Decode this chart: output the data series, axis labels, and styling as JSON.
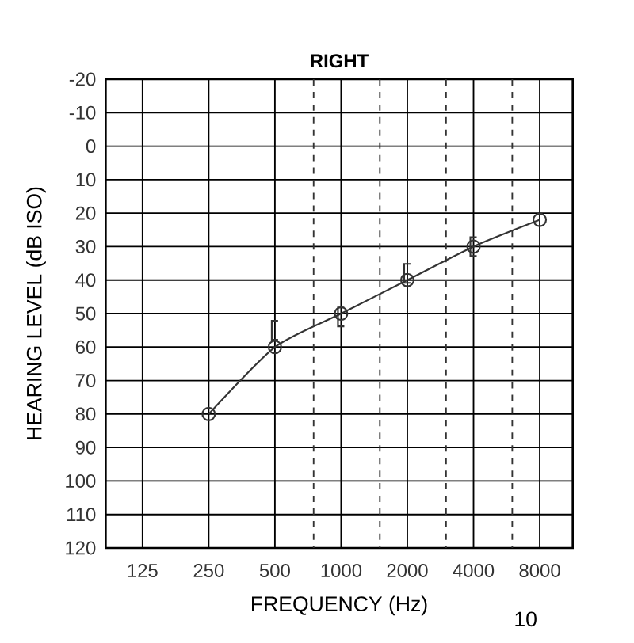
{
  "chart_data": {
    "type": "line",
    "title": "RIGHT",
    "xlabel": "FREQUENCY (Hz)",
    "ylabel": "HEARING LEVEL (dB ISO)",
    "log": "x",
    "xlim": [
      85,
      11300
    ],
    "xticks": [
      125,
      250,
      500,
      1000,
      2000,
      4000,
      8000
    ],
    "ylim": [
      120,
      -20
    ],
    "yticks": [
      -20,
      -10,
      0,
      10,
      20,
      30,
      40,
      50,
      60,
      70,
      80,
      90,
      100,
      110,
      120
    ],
    "grid": true,
    "series": [
      {
        "color": "#333333",
        "marker": "circle",
        "line_style": "solid",
        "x": [
          250,
          500,
          1000,
          2000,
          4000,
          8000
        ],
        "values": [
          80,
          60,
          50,
          40,
          30,
          22
        ]
      },
      {
        "type": "scatter",
        "color": "#333333",
        "x": [
          500,
          1000,
          2000,
          4000
        ],
        "values": [
          55,
          51,
          38,
          30
        ]
      }
    ],
    "ref_lines": [
      {
        "axis": "x",
        "value": 750,
        "color": "#333333",
        "line_style": "dashed"
      },
      {
        "axis": "x",
        "value": 1500,
        "color": "#333333",
        "line_style": "dashed"
      },
      {
        "axis": "x",
        "value": 3000,
        "color": "#333333",
        "line_style": "dashed"
      },
      {
        "axis": "x",
        "value": 6000,
        "color": "#333333",
        "line_style": "dashed"
      }
    ],
    "annotations": [
      "10"
    ]
  }
}
